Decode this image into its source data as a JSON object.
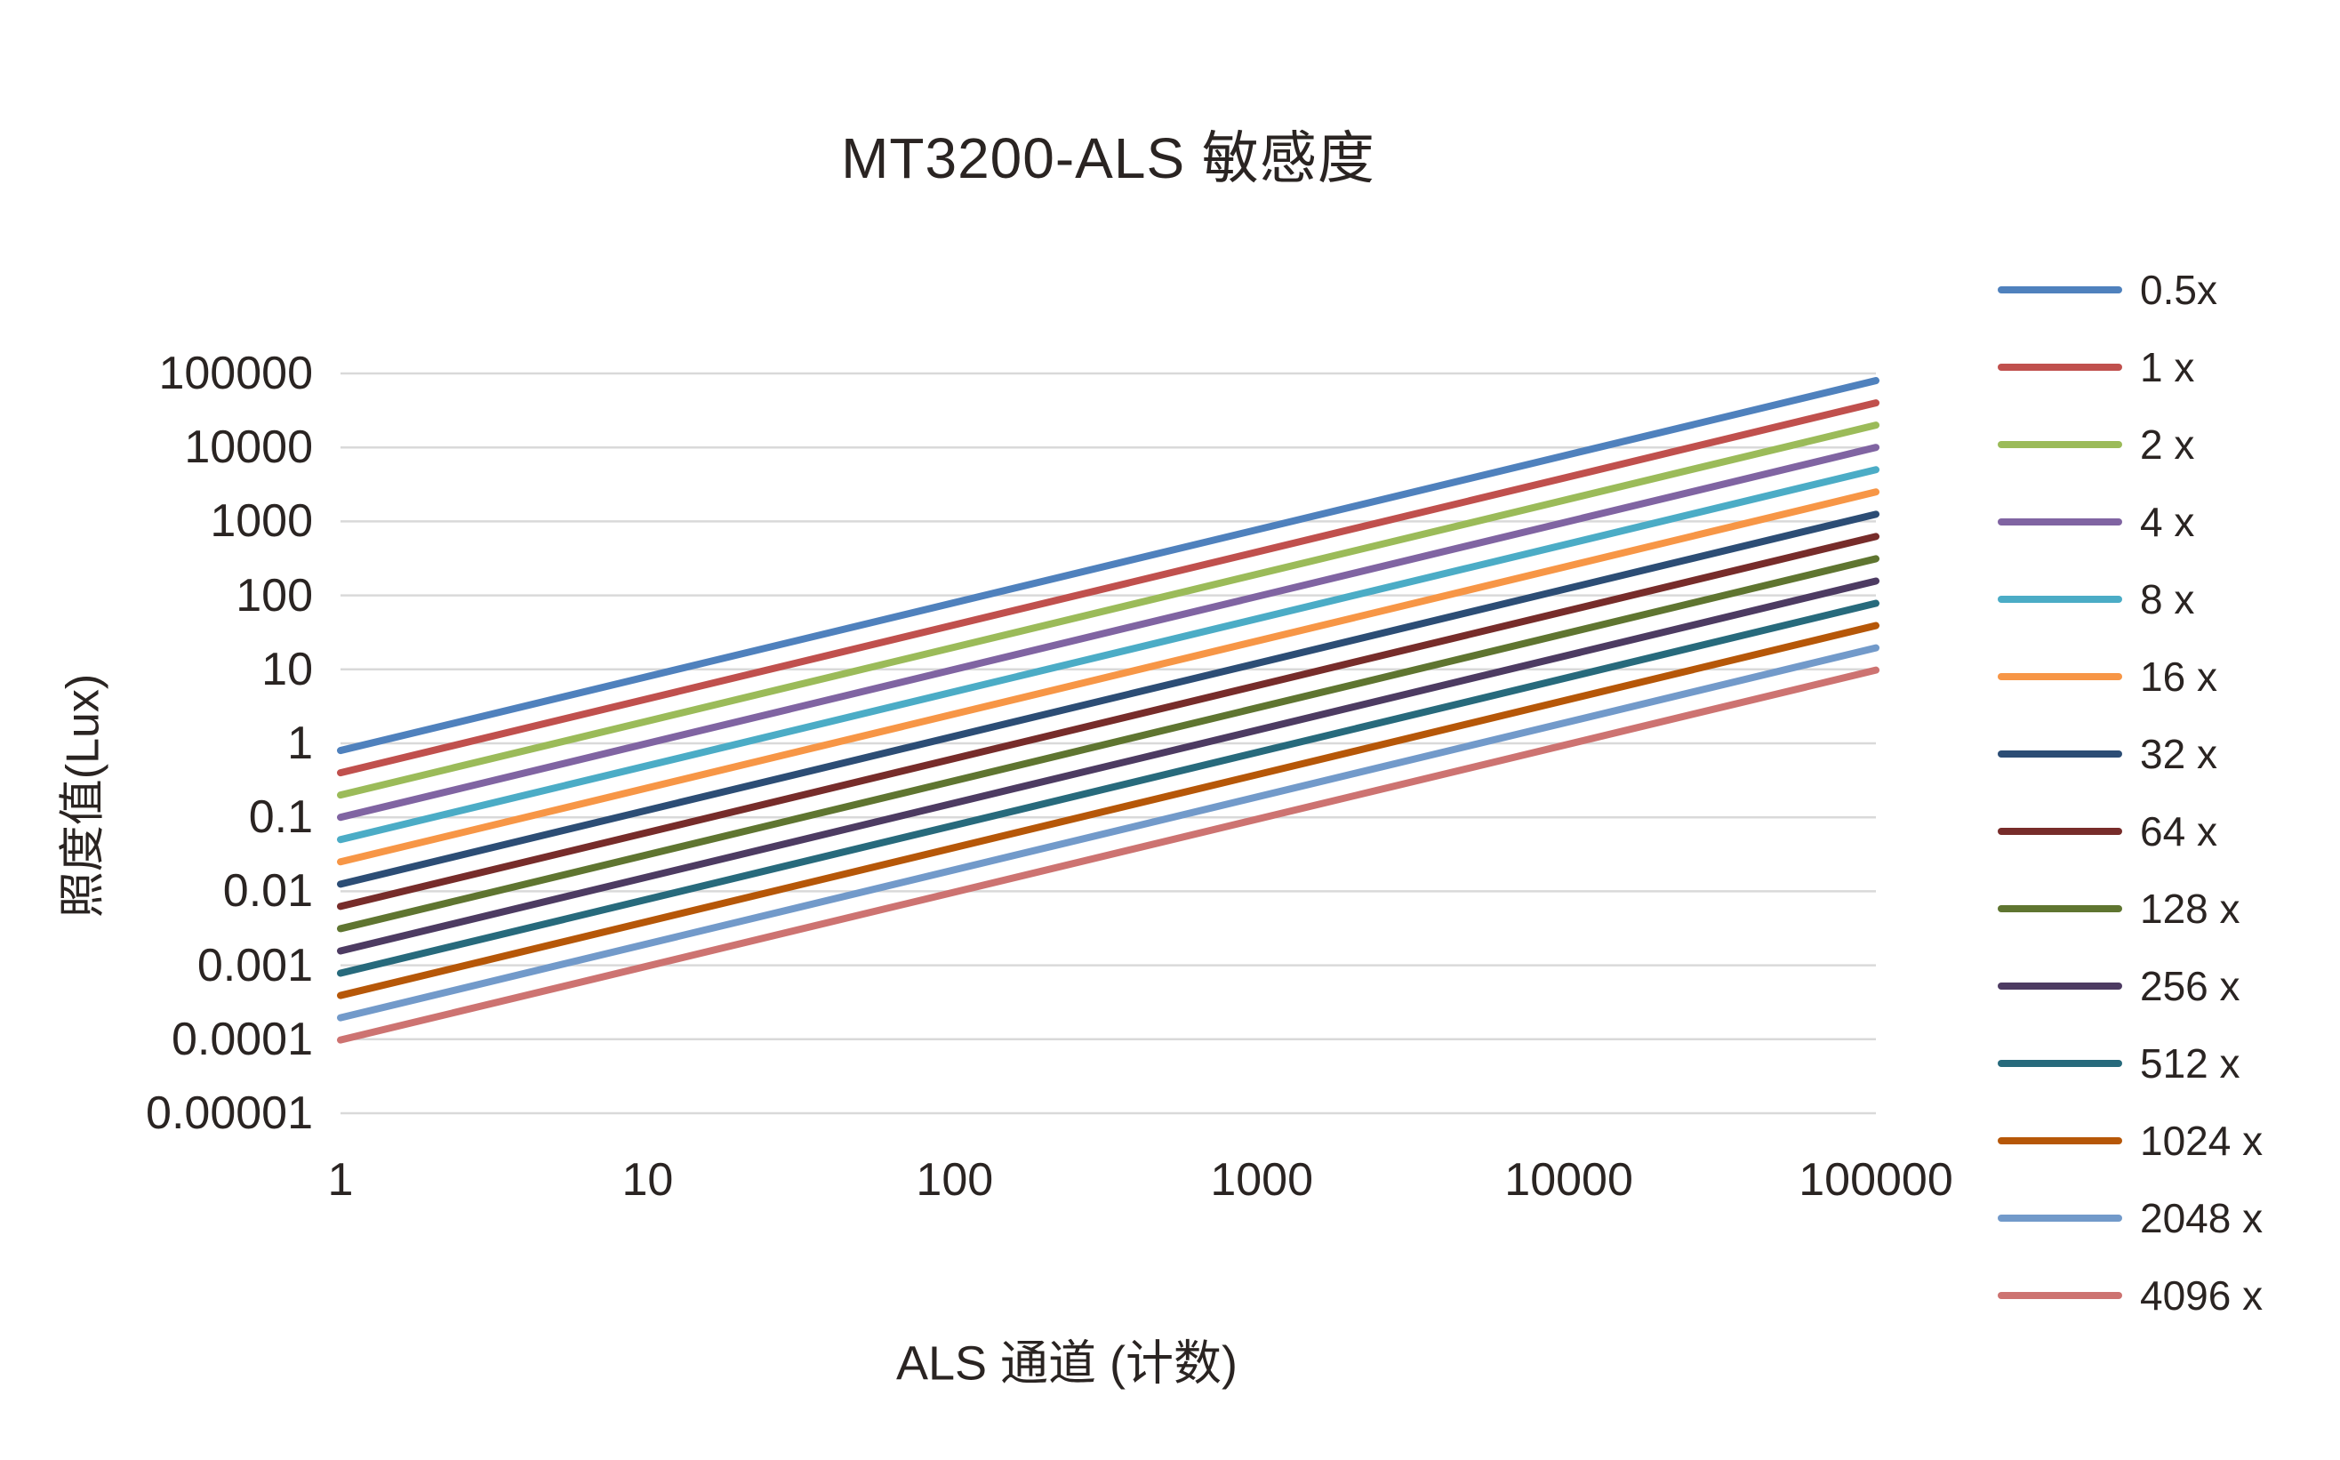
{
  "page": {
    "background": "#ffffff",
    "text_color": "#2a2422"
  },
  "chart_data": {
    "type": "line",
    "title": "MT3200-ALS 敏感度",
    "xlabel": "ALS 通道 (计数)",
    "ylabel": "照度值(Lux)",
    "x_scale": "log",
    "y_scale": "log",
    "xlim": [
      1,
      100000
    ],
    "ylim": [
      1e-05,
      100000
    ],
    "x_ticks": [
      "1",
      "10",
      "100",
      "1000",
      "10000",
      "100000"
    ],
    "y_ticks": [
      "100000",
      "10000",
      "1000",
      "100",
      "10",
      "1",
      "0.1",
      "0.01",
      "0.001",
      "0.0001",
      "0.00001"
    ],
    "grid": "horizontal-only",
    "gridline_color": "#d9d9d9",
    "legend_position": "right",
    "x": [
      1,
      100000
    ],
    "series": [
      {
        "label": "0.5x",
        "gain": 0.5,
        "color": "#4F81BD",
        "lux_per_count": 0.8,
        "y": [
          0.8,
          80000
        ]
      },
      {
        "label": "1 x",
        "gain": 1,
        "color": "#C0504D",
        "lux_per_count": 0.4,
        "y": [
          0.4,
          40000
        ]
      },
      {
        "label": "2 x",
        "gain": 2,
        "color": "#9BBB59",
        "lux_per_count": 0.2,
        "y": [
          0.2,
          20000
        ]
      },
      {
        "label": "4 x",
        "gain": 4,
        "color": "#8064A2",
        "lux_per_count": 0.1,
        "y": [
          0.1,
          10000
        ]
      },
      {
        "label": "8 x",
        "gain": 8,
        "color": "#4BACC6",
        "lux_per_count": 0.05,
        "y": [
          0.05,
          5000
        ]
      },
      {
        "label": "16 x",
        "gain": 16,
        "color": "#F79646",
        "lux_per_count": 0.025,
        "y": [
          0.025,
          2500
        ]
      },
      {
        "label": "32 x",
        "gain": 32,
        "color": "#2C4D75",
        "lux_per_count": 0.0125,
        "y": [
          0.0125,
          1250
        ]
      },
      {
        "label": "64 x",
        "gain": 64,
        "color": "#772C2A",
        "lux_per_count": 0.00625,
        "y": [
          0.00625,
          625
        ]
      },
      {
        "label": "128 x",
        "gain": 128,
        "color": "#5F7530",
        "lux_per_count": 0.003125,
        "y": [
          0.003125,
          312.5
        ]
      },
      {
        "label": "256 x",
        "gain": 256,
        "color": "#4D3B62",
        "lux_per_count": 0.0015625,
        "y": [
          0.0015625,
          156.25
        ]
      },
      {
        "label": "512 x",
        "gain": 512,
        "color": "#276A7C",
        "lux_per_count": 0.00078125,
        "y": [
          0.00078125,
          78.125
        ]
      },
      {
        "label": "1024 x",
        "gain": 1024,
        "color": "#B65708",
        "lux_per_count": 0.000390625,
        "y": [
          0.000390625,
          39.0625
        ]
      },
      {
        "label": "2048 x",
        "gain": 2048,
        "color": "#729ACA",
        "lux_per_count": 0.0001953125,
        "y": [
          0.0001953125,
          19.53125
        ]
      },
      {
        "label": "4096 x",
        "gain": 4096,
        "color": "#CD7371",
        "lux_per_count": 9.765625e-05,
        "y": [
          9.765625e-05,
          9.765625
        ]
      }
    ]
  }
}
